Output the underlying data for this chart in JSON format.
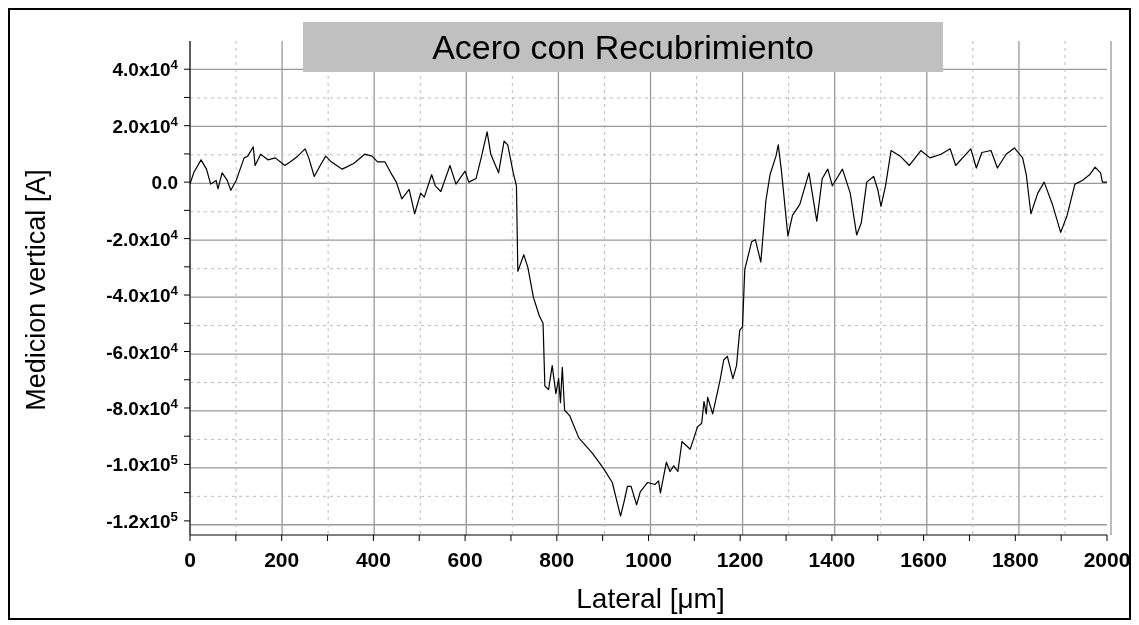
{
  "chart_data": {
    "type": "line",
    "title": "Acero con Recubrimiento",
    "xlabel": "Lateral [μm]",
    "ylabel": "Medicion vertical [A]",
    "x": [
      0,
      8,
      24,
      36,
      45,
      57,
      61,
      70,
      81,
      89,
      101,
      118,
      126,
      138,
      142,
      154,
      170,
      186,
      207,
      219,
      235,
      251,
      259,
      271,
      284,
      296,
      308,
      332,
      357,
      381,
      397,
      409,
      425,
      438,
      450,
      462,
      478,
      490,
      503,
      511,
      527,
      535,
      547,
      567,
      580,
      600,
      608,
      624,
      636,
      648,
      656,
      673,
      685,
      693,
      705,
      712,
      715,
      728,
      737,
      749,
      762,
      770,
      774,
      782,
      790,
      798,
      804,
      808,
      812,
      817,
      828,
      848,
      877,
      901,
      921,
      933,
      939,
      946,
      954,
      962,
      974,
      982,
      998,
      1014,
      1022,
      1026,
      1039,
      1047,
      1055,
      1064,
      1073,
      1091,
      1107,
      1116,
      1121,
      1126,
      1129,
      1140,
      1156,
      1164,
      1172,
      1184,
      1192,
      1199,
      1205,
      1210,
      1225,
      1233,
      1245,
      1256,
      1265,
      1278,
      1283,
      1290,
      1304,
      1314,
      1330,
      1350,
      1367,
      1379,
      1391,
      1401,
      1423,
      1440,
      1454,
      1464,
      1476,
      1491,
      1500,
      1507,
      1517,
      1529,
      1549,
      1569,
      1594,
      1614,
      1638,
      1658,
      1670,
      1703,
      1715,
      1727,
      1747,
      1761,
      1780,
      1798,
      1816,
      1824,
      1834,
      1849,
      1863,
      1881,
      1899,
      1913,
      1930,
      1946,
      1962,
      1974,
      1986,
      1990,
      2000
    ],
    "series": [
      {
        "color": "#000000",
        "values": [
          -700,
          3300,
          7900,
          4600,
          -700,
          600,
          -2400,
          3300,
          700,
          -2900,
          700,
          8600,
          9200,
          12500,
          5900,
          9900,
          7900,
          8600,
          5900,
          7200,
          9200,
          11800,
          8600,
          2000,
          5900,
          9200,
          7200,
          4600,
          6600,
          9900,
          9200,
          7200,
          7200,
          3300,
          0,
          -5900,
          -2600,
          -11200,
          -3900,
          -5300,
          2600,
          -1300,
          -3300,
          5900,
          -700,
          3900,
          0,
          1300,
          9200,
          17800,
          9900,
          3300,
          14500,
          13200,
          3300,
          -1300,
          -31600,
          -25700,
          -30300,
          -40800,
          -47400,
          -50000,
          -72200,
          -73500,
          -65000,
          -74900,
          -69600,
          -78100,
          -65600,
          -80800,
          -82700,
          -90600,
          -95900,
          -101200,
          -106400,
          -114300,
          -118300,
          -113700,
          -107800,
          -107800,
          -114300,
          -109700,
          -106400,
          -107100,
          -105800,
          -110100,
          -99200,
          -102500,
          -100500,
          -102500,
          -91900,
          -94600,
          -86700,
          -85400,
          -77700,
          -82100,
          -76200,
          -82100,
          -70200,
          -63000,
          -61700,
          -69600,
          -65000,
          -52500,
          -51300,
          -30900,
          -21100,
          -20400,
          -28300,
          -6600,
          2600,
          9200,
          13200,
          3900,
          -19100,
          -11800,
          -7900,
          3300,
          -13800,
          1300,
          4600,
          -1300,
          4600,
          -3900,
          -18700,
          -14500,
          0,
          2000,
          -2600,
          -8600,
          -1300,
          11200,
          9200,
          5900,
          11200,
          8600,
          9900,
          11800,
          5900,
          11800,
          5000,
          10500,
          11200,
          5000,
          9900,
          12100,
          8600,
          2600,
          -11200,
          -3900,
          0,
          -7900,
          -17800,
          -11800,
          -700,
          600,
          2600,
          5300,
          3300,
          0,
          0
        ]
      }
    ],
    "xlim": [
      0,
      2000
    ],
    "xticks": [
      0,
      {
        "value": 100,
        "label": null
      },
      200,
      {
        "value": 300,
        "label": null
      },
      400,
      {
        "value": 500,
        "label": null
      },
      600,
      {
        "value": 700,
        "label": null
      },
      800,
      {
        "value": 900,
        "label": null
      },
      1000,
      {
        "value": 1100,
        "label": null
      },
      1200,
      {
        "value": 1300,
        "label": null
      },
      1400,
      {
        "value": 1500,
        "label": null
      },
      1600,
      {
        "value": 1700,
        "label": null
      },
      1800,
      {
        "value": 1900,
        "label": null
      },
      2000
    ],
    "ylim": [
      -125000,
      50000
    ],
    "yticks": [
      {
        "value": -120000,
        "label": "-1.2x10$^{5}$"
      },
      {
        "value": -110000,
        "label": null
      },
      {
        "value": -100000,
        "label": "-1.0x10$^{5}$"
      },
      {
        "value": -90000,
        "label": null
      },
      {
        "value": -80000,
        "label": "-8.0x10$^{4}$"
      },
      {
        "value": -70000,
        "label": null
      },
      {
        "value": -60000,
        "label": "-6.0x10$^{4}$"
      },
      {
        "value": -50000,
        "label": null
      },
      {
        "value": -40000,
        "label": "-4.0x10$^{4}$"
      },
      {
        "value": -30000,
        "label": null
      },
      {
        "value": -20000,
        "label": "-2.0x10$^{4}$"
      },
      {
        "value": -10000,
        "label": null
      },
      {
        "value": 0,
        "label": "0.0"
      },
      {
        "value": 10000,
        "label": null
      },
      {
        "value": 20000,
        "label": "2.0x10$^{4}$"
      },
      {
        "value": 30000,
        "label": null
      },
      {
        "value": 40000,
        "label": "4.0x10$^{4}$"
      }
    ],
    "grid": true,
    "legend": false,
    "marker": "none",
    "line_style": "solid"
  }
}
